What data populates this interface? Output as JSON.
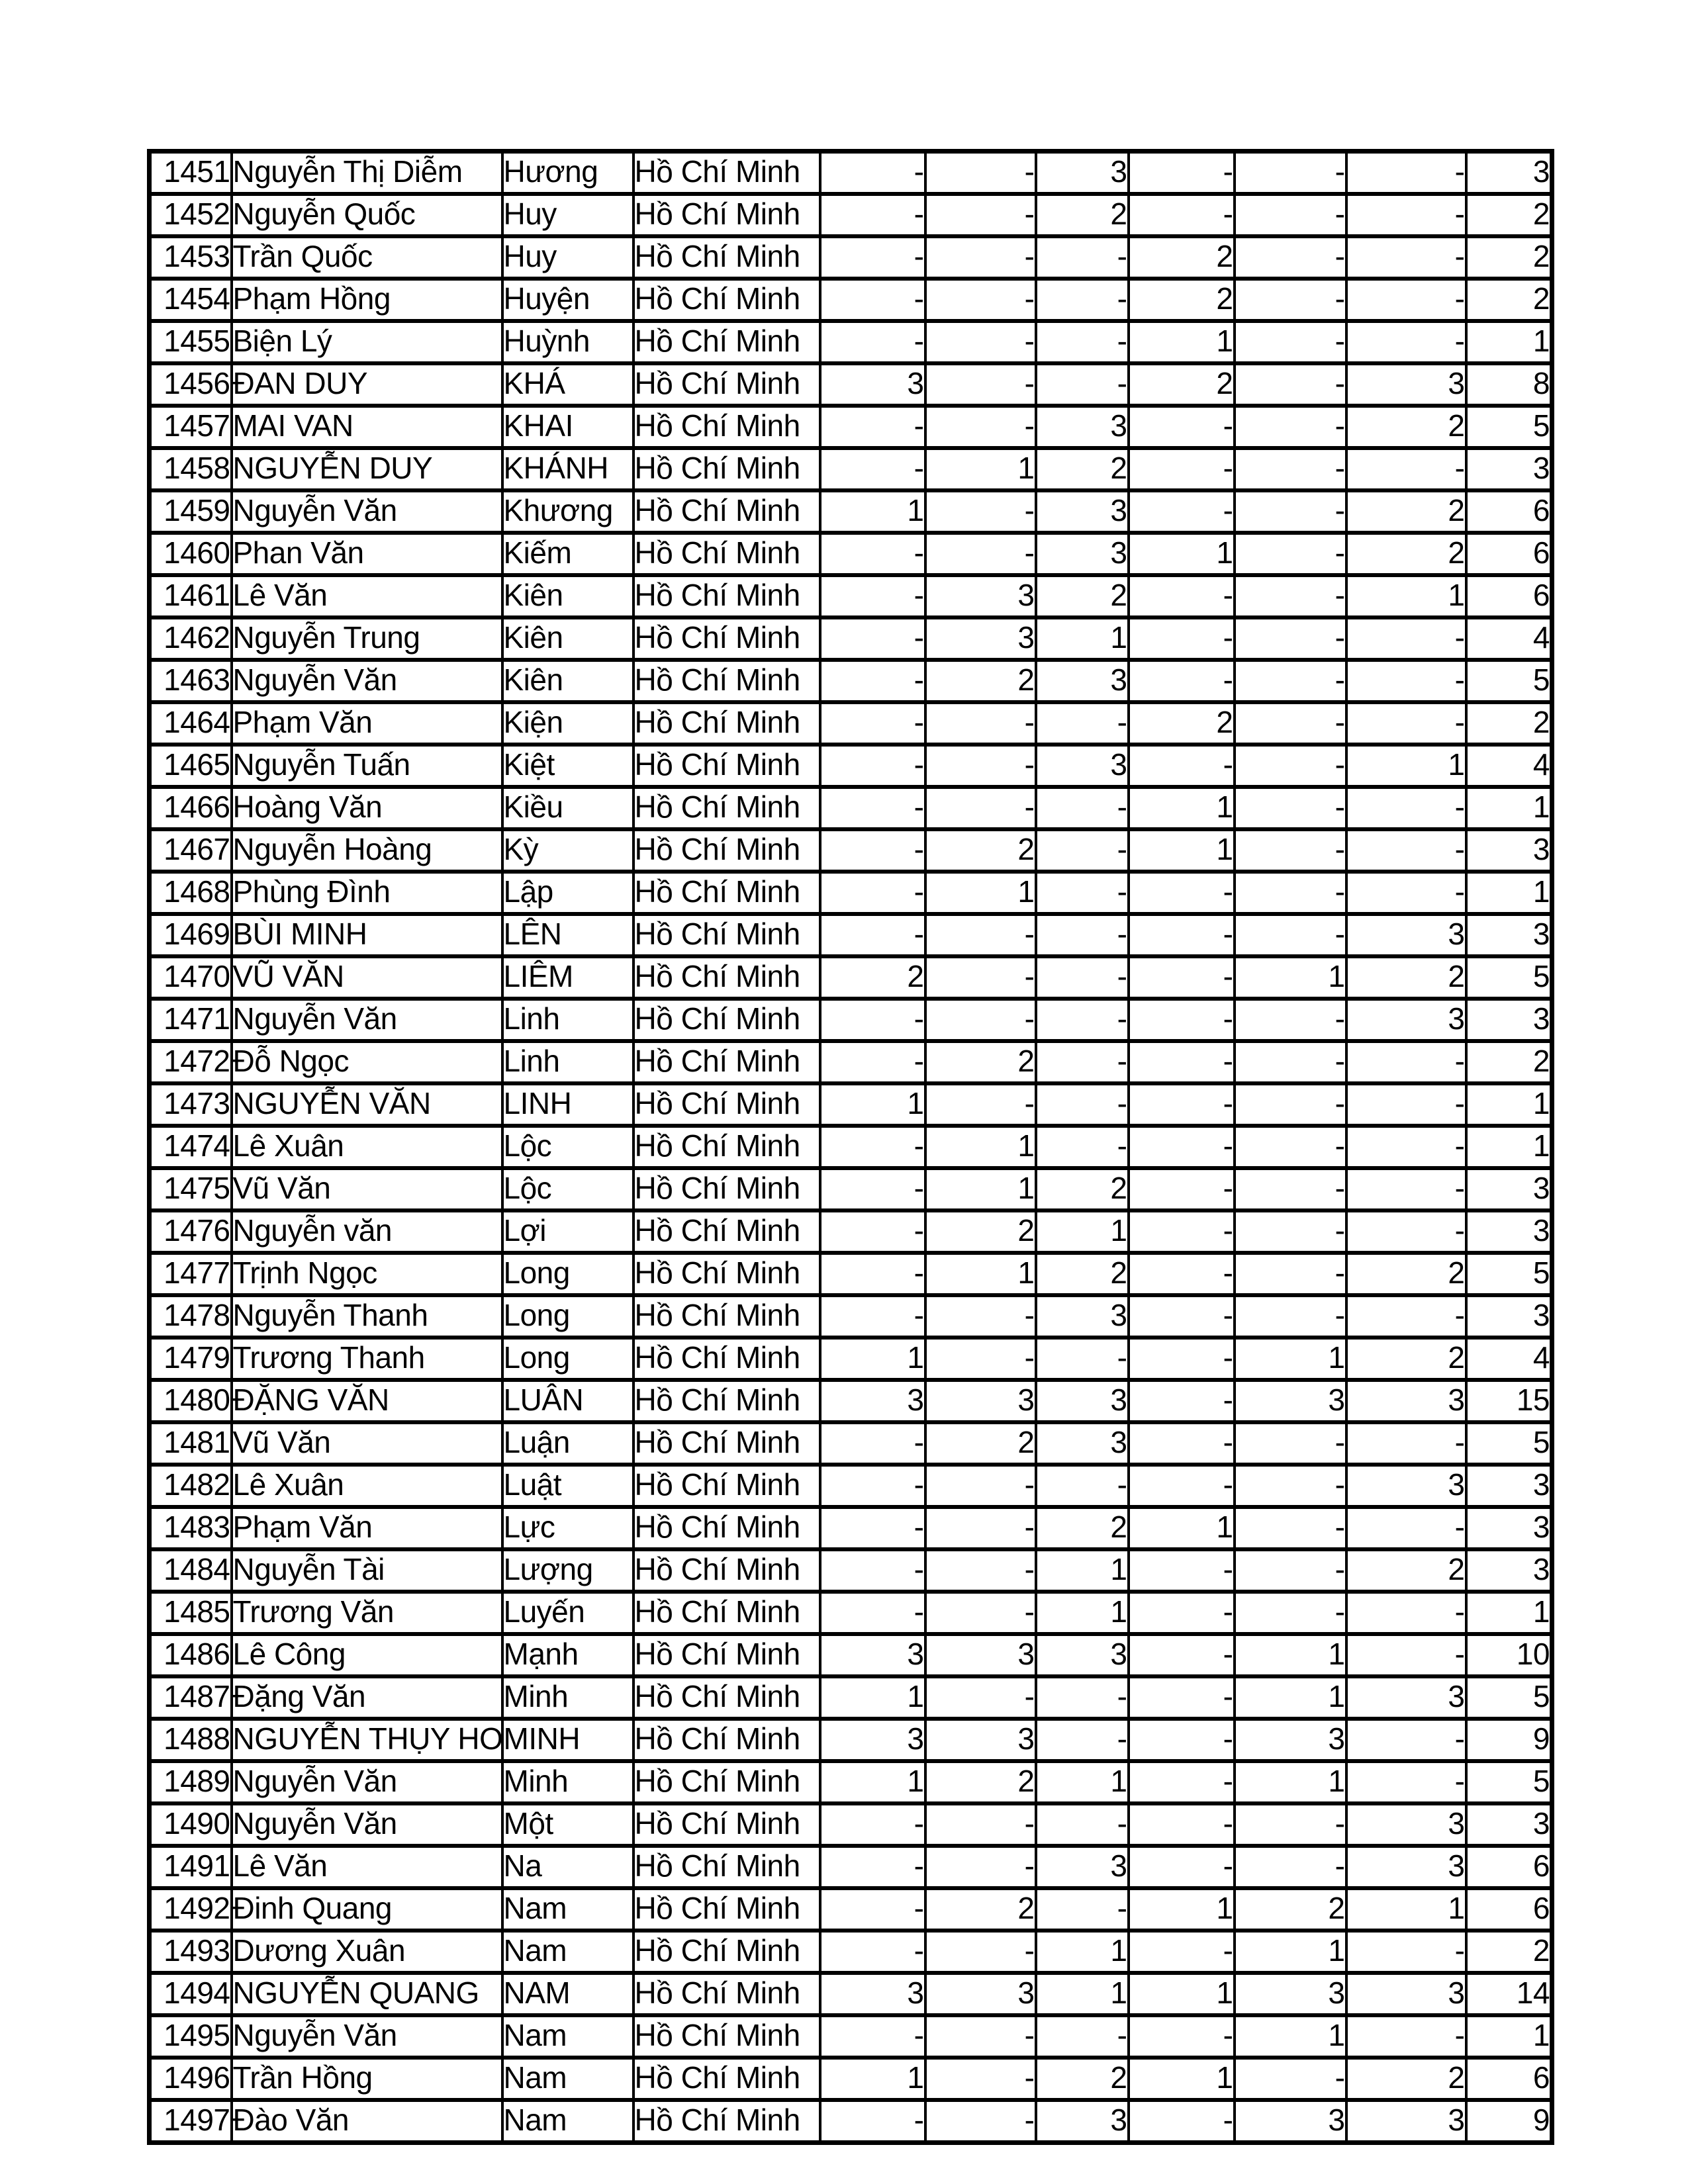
{
  "page": {
    "background_color": "#ffffff",
    "text_color": "#000000",
    "grid_line_color": "#000000"
  },
  "table": {
    "rows": [
      {
        "id": "1451",
        "first_name": "Nguyễn Thị Diễm",
        "last_name": "Hương",
        "province": "Hồ Chí Minh",
        "values": [
          "-",
          "-",
          "3",
          "-",
          "-",
          "-"
        ],
        "total": "3"
      },
      {
        "id": "1452",
        "first_name": "Nguyễn Quốc",
        "last_name": "Huy",
        "province": "Hồ Chí Minh",
        "values": [
          "-",
          "-",
          "2",
          "-",
          "-",
          "-"
        ],
        "total": "2"
      },
      {
        "id": "1453",
        "first_name": "Trần Quốc",
        "last_name": "Huy",
        "province": "Hồ Chí Minh",
        "values": [
          "-",
          "-",
          "-",
          "2",
          "-",
          "-"
        ],
        "total": "2"
      },
      {
        "id": "1454",
        "first_name": "Phạm Hồng",
        "last_name": "Huyện",
        "province": "Hồ Chí Minh",
        "values": [
          "-",
          "-",
          "-",
          "2",
          "-",
          "-"
        ],
        "total": "2"
      },
      {
        "id": "1455",
        "first_name": "Biện Lý",
        "last_name": "Huỳnh",
        "province": "Hồ Chí Minh",
        "values": [
          "-",
          "-",
          "-",
          "1",
          "-",
          "-"
        ],
        "total": "1"
      },
      {
        "id": "1456",
        "first_name": "ĐAN DUY",
        "last_name": "KHÁ",
        "province": "Hồ Chí Minh",
        "values": [
          "3",
          "-",
          "-",
          "2",
          "-",
          "3"
        ],
        "total": "8"
      },
      {
        "id": "1457",
        "first_name": "MAI VAN",
        "last_name": "KHAI",
        "province": "Hồ Chí Minh",
        "values": [
          "-",
          "-",
          "3",
          "-",
          "-",
          "2"
        ],
        "total": "5"
      },
      {
        "id": "1458",
        "first_name": "NGUYỄN DUY",
        "last_name": "KHÁNH",
        "province": "Hồ Chí Minh",
        "values": [
          "-",
          "1",
          "2",
          "-",
          "-",
          "-"
        ],
        "total": "3"
      },
      {
        "id": "1459",
        "first_name": "Nguyễn Văn",
        "last_name": "Khương",
        "province": "Hồ Chí Minh",
        "values": [
          "1",
          "-",
          "3",
          "-",
          "-",
          "2"
        ],
        "total": "6"
      },
      {
        "id": "1460",
        "first_name": "Phan Văn",
        "last_name": "Kiếm",
        "province": "Hồ Chí Minh",
        "values": [
          "-",
          "-",
          "3",
          "1",
          "-",
          "2"
        ],
        "total": "6"
      },
      {
        "id": "1461",
        "first_name": "Lê Văn",
        "last_name": "Kiên",
        "province": "Hồ Chí Minh",
        "values": [
          "-",
          "3",
          "2",
          "-",
          "-",
          "1"
        ],
        "total": "6"
      },
      {
        "id": "1462",
        "first_name": "Nguyễn Trung",
        "last_name": "Kiên",
        "province": "Hồ Chí Minh",
        "values": [
          "-",
          "3",
          "1",
          "-",
          "-",
          "-"
        ],
        "total": "4"
      },
      {
        "id": "1463",
        "first_name": "Nguyễn Văn",
        "last_name": "Kiên",
        "province": "Hồ Chí Minh",
        "values": [
          "-",
          "2",
          "3",
          "-",
          "-",
          "-"
        ],
        "total": "5"
      },
      {
        "id": "1464",
        "first_name": "Phạm Văn",
        "last_name": "Kiện",
        "province": "Hồ Chí Minh",
        "values": [
          "-",
          "-",
          "-",
          "2",
          "-",
          "-"
        ],
        "total": "2"
      },
      {
        "id": "1465",
        "first_name": "Nguyễn  Tuấn",
        "last_name": "Kiệt",
        "province": "Hồ Chí Minh",
        "values": [
          "-",
          "-",
          "3",
          "-",
          "-",
          "1"
        ],
        "total": "4"
      },
      {
        "id": "1466",
        "first_name": "Hoàng Văn",
        "last_name": "Kiều",
        "province": "Hồ Chí Minh",
        "values": [
          "-",
          "-",
          "-",
          "1",
          "-",
          "-"
        ],
        "total": "1"
      },
      {
        "id": "1467",
        "first_name": "Nguyễn Hoàng",
        "last_name": "Kỳ",
        "province": "Hồ Chí Minh",
        "values": [
          "-",
          "2",
          "-",
          "1",
          "-",
          "-"
        ],
        "total": "3"
      },
      {
        "id": "1468",
        "first_name": "Phùng Đình",
        "last_name": "Lập",
        "province": "Hồ Chí Minh",
        "values": [
          "-",
          "1",
          "-",
          "-",
          "-",
          "-"
        ],
        "total": "1"
      },
      {
        "id": "1469",
        "first_name": "BÙI MINH",
        "last_name": "LÊN",
        "province": "Hồ Chí Minh",
        "values": [
          "-",
          "-",
          "-",
          "-",
          "-",
          "3"
        ],
        "total": "3"
      },
      {
        "id": "1470",
        "first_name": "VŨ VĂN",
        "last_name": "LIÊM",
        "province": "Hồ Chí Minh",
        "values": [
          "2",
          "-",
          "-",
          "-",
          "1",
          "2"
        ],
        "total": "5"
      },
      {
        "id": "1471",
        "first_name": "Nguyễn Văn",
        "last_name": "Linh",
        "province": "Hồ Chí Minh",
        "values": [
          "-",
          "-",
          "-",
          "-",
          "-",
          "3"
        ],
        "total": "3"
      },
      {
        "id": "1472",
        "first_name": "Đỗ Ngọc",
        "last_name": "Linh",
        "province": "Hồ Chí Minh",
        "values": [
          "-",
          "2",
          "-",
          "-",
          "-",
          "-"
        ],
        "total": "2"
      },
      {
        "id": "1473",
        "first_name": "NGUYỄN VĂN",
        "last_name": "LINH",
        "province": "Hồ Chí Minh",
        "values": [
          "1",
          "-",
          "-",
          "-",
          "-",
          "-"
        ],
        "total": "1"
      },
      {
        "id": "1474",
        "first_name": "Lê Xuân",
        "last_name": "Lộc",
        "province": "Hồ Chí Minh",
        "values": [
          "-",
          "1",
          "-",
          "-",
          "-",
          "-"
        ],
        "total": "1"
      },
      {
        "id": "1475",
        "first_name": "Vũ Văn",
        "last_name": "Lộc",
        "province": "Hồ Chí Minh",
        "values": [
          "-",
          "1",
          "2",
          "-",
          "-",
          "-"
        ],
        "total": "3"
      },
      {
        "id": "1476",
        "first_name": "Nguyễn văn",
        "last_name": "Lợi",
        "province": "Hồ Chí Minh",
        "values": [
          "-",
          "2",
          "1",
          "-",
          "-",
          "-"
        ],
        "total": "3"
      },
      {
        "id": "1477",
        "first_name": "Trịnh Ngọc",
        "last_name": "Long",
        "province": "Hồ Chí Minh",
        "values": [
          "-",
          "1",
          "2",
          "-",
          "-",
          "2"
        ],
        "total": "5"
      },
      {
        "id": "1478",
        "first_name": "Nguyễn Thanh",
        "last_name": "Long",
        "province": "Hồ Chí Minh",
        "values": [
          "-",
          "-",
          "3",
          "-",
          "-",
          "-"
        ],
        "total": "3"
      },
      {
        "id": "1479",
        "first_name": "Trương Thanh",
        "last_name": "Long",
        "province": "Hồ Chí Minh",
        "values": [
          "1",
          "-",
          "-",
          "-",
          "1",
          "2"
        ],
        "total": "4"
      },
      {
        "id": "1480",
        "first_name": "ĐẶNG VĂN",
        "last_name": "LUÂN",
        "province": "Hồ Chí Minh",
        "values": [
          "3",
          "3",
          "3",
          "-",
          "3",
          "3"
        ],
        "total": "15"
      },
      {
        "id": "1481",
        "first_name": "Vũ Văn",
        "last_name": "Luận",
        "province": "Hồ Chí Minh",
        "values": [
          "-",
          "2",
          "3",
          "-",
          "-",
          "-"
        ],
        "total": "5"
      },
      {
        "id": "1482",
        "first_name": "Lê Xuân",
        "last_name": "Luật",
        "province": "Hồ Chí Minh",
        "values": [
          "-",
          "-",
          "-",
          "-",
          "-",
          "3"
        ],
        "total": "3"
      },
      {
        "id": "1483",
        "first_name": "Phạm Văn",
        "last_name": "Lực",
        "province": "Hồ Chí Minh",
        "values": [
          "-",
          "-",
          "2",
          "1",
          "-",
          "-"
        ],
        "total": "3"
      },
      {
        "id": "1484",
        "first_name": "Nguyễn Tài",
        "last_name": "Lượng",
        "province": "Hồ Chí Minh",
        "values": [
          "-",
          "-",
          "1",
          "-",
          "-",
          "2"
        ],
        "total": "3"
      },
      {
        "id": "1485",
        "first_name": "Trương Văn",
        "last_name": "Luyến",
        "province": "Hồ Chí Minh",
        "values": [
          "-",
          "-",
          "1",
          "-",
          "-",
          "-"
        ],
        "total": "1"
      },
      {
        "id": "1486",
        "first_name": "Lê Công",
        "last_name": "Mạnh",
        "province": "Hồ Chí Minh",
        "values": [
          "3",
          "3",
          "3",
          "-",
          "1",
          "-"
        ],
        "total": "10"
      },
      {
        "id": "1487",
        "first_name": "Đặng Văn",
        "last_name": "Minh",
        "province": "Hồ Chí Minh",
        "values": [
          "1",
          "-",
          "-",
          "-",
          "1",
          "3"
        ],
        "total": "5"
      },
      {
        "id": "1488",
        "first_name": "NGUYỄN THỤY HOÀN",
        "last_name": "MINH",
        "province": "Hồ Chí Minh",
        "values": [
          "3",
          "3",
          "-",
          "-",
          "3",
          "-"
        ],
        "total": "9"
      },
      {
        "id": "1489",
        "first_name": "Nguyễn Văn",
        "last_name": "Minh",
        "province": "Hồ Chí Minh",
        "values": [
          "1",
          "2",
          "1",
          "-",
          "1",
          "-"
        ],
        "total": "5"
      },
      {
        "id": "1490",
        "first_name": "Nguyễn Văn",
        "last_name": "Một",
        "province": "Hồ Chí Minh",
        "values": [
          "-",
          "-",
          "-",
          "-",
          "-",
          "3"
        ],
        "total": "3"
      },
      {
        "id": "1491",
        "first_name": "Lê Văn",
        "last_name": "Na",
        "province": "Hồ Chí Minh",
        "values": [
          "-",
          "-",
          "3",
          "-",
          "-",
          "3"
        ],
        "total": "6"
      },
      {
        "id": "1492",
        "first_name": "Đinh Quang",
        "last_name": "Nam",
        "province": "Hồ Chí Minh",
        "values": [
          "-",
          "2",
          "-",
          "1",
          "2",
          "1"
        ],
        "total": "6"
      },
      {
        "id": "1493",
        "first_name": "Dương Xuân",
        "last_name": "Nam",
        "province": "Hồ Chí Minh",
        "values": [
          "-",
          "-",
          "1",
          "-",
          "1",
          "-"
        ],
        "total": "2"
      },
      {
        "id": "1494",
        "first_name": "NGUYỄN QUANG",
        "last_name": "NAM",
        "province": "Hồ Chí Minh",
        "values": [
          "3",
          "3",
          "1",
          "1",
          "3",
          "3"
        ],
        "total": "14"
      },
      {
        "id": "1495",
        "first_name": "Nguyễn Văn",
        "last_name": "Nam",
        "province": "Hồ Chí Minh",
        "values": [
          "-",
          "-",
          "-",
          "-",
          "1",
          "-"
        ],
        "total": "1"
      },
      {
        "id": "1496",
        "first_name": "Trần Hồng",
        "last_name": "Nam",
        "province": "Hồ Chí Minh",
        "values": [
          "1",
          "-",
          "2",
          "1",
          "-",
          "2"
        ],
        "total": "6"
      },
      {
        "id": "1497",
        "first_name": "Đào Văn",
        "last_name": "Nam",
        "province": "Hồ Chí Minh",
        "values": [
          "-",
          "-",
          "3",
          "-",
          "3",
          "3"
        ],
        "total": "9"
      }
    ]
  }
}
